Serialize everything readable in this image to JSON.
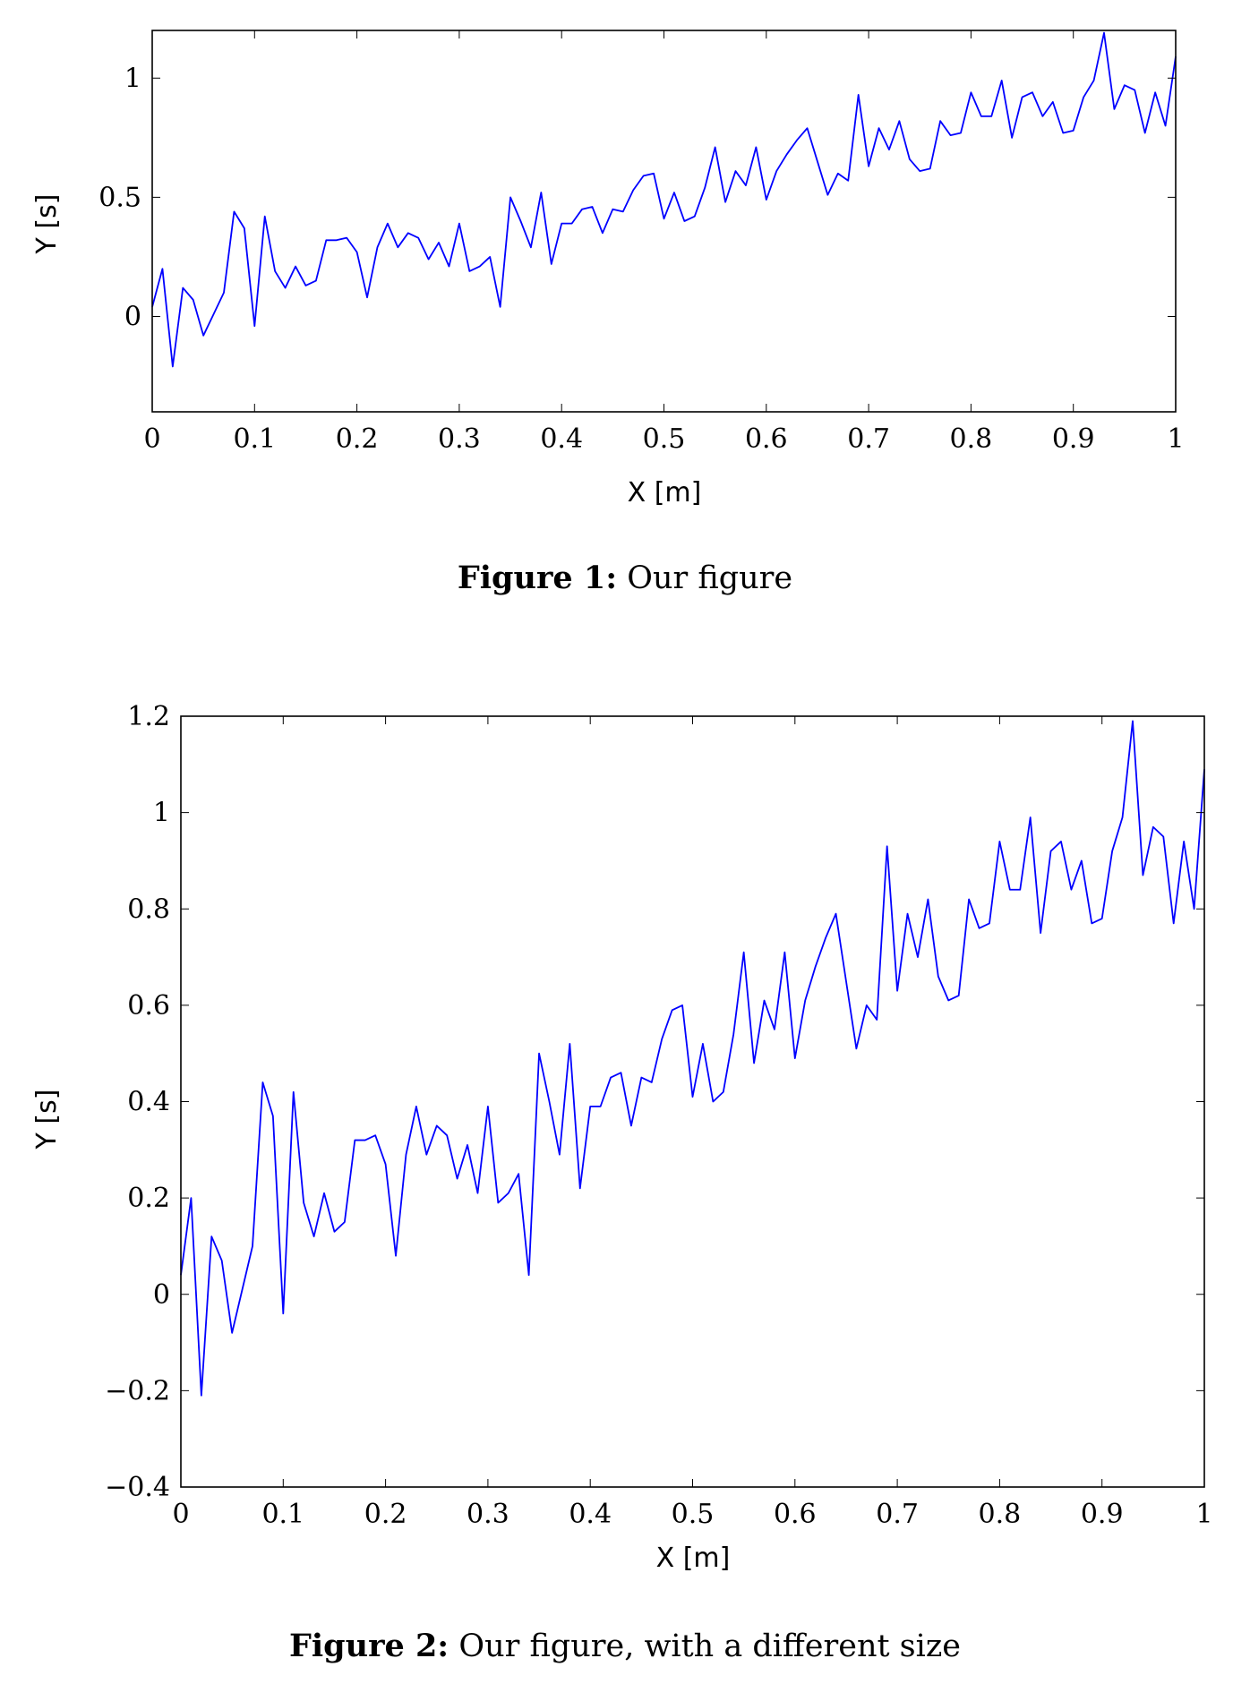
{
  "figures": [
    {
      "caption_label": "Figure 1:",
      "caption_text": "Our figure",
      "x_ticks": [
        "0",
        "0.1",
        "0.2",
        "0.3",
        "0.4",
        "0.5",
        "0.6",
        "0.7",
        "0.8",
        "0.9",
        "1"
      ],
      "y_ticks": [
        "0",
        "0.5",
        "1"
      ]
    },
    {
      "caption_label": "Figure 2:",
      "caption_text": "Our figure, with a different size",
      "x_ticks": [
        "0",
        "0.1",
        "0.2",
        "0.3",
        "0.4",
        "0.5",
        "0.6",
        "0.7",
        "0.8",
        "0.9",
        "1"
      ],
      "y_ticks": [
        "−0.4",
        "−0.2",
        "0",
        "0.2",
        "0.4",
        "0.6",
        "0.8",
        "1",
        "1.2"
      ]
    }
  ],
  "chart_data": [
    {
      "type": "line",
      "xlabel": "X [m]",
      "ylabel": "Y [s]",
      "xlim": [
        0,
        1
      ],
      "ylim": [
        -0.4,
        1.2
      ],
      "x_tick_values": [
        0,
        0.1,
        0.2,
        0.3,
        0.4,
        0.5,
        0.6,
        0.7,
        0.8,
        0.9,
        1
      ],
      "y_tick_values": [
        0,
        0.5,
        1
      ],
      "grid": false,
      "line_color": "#0000ff",
      "x": [
        0,
        0.01,
        0.02,
        0.03,
        0.04,
        0.05,
        0.06,
        0.07,
        0.08,
        0.09,
        0.1,
        0.11,
        0.12,
        0.13,
        0.14,
        0.15,
        0.16,
        0.17,
        0.18,
        0.19,
        0.2,
        0.21,
        0.22,
        0.23,
        0.24,
        0.25,
        0.26,
        0.27,
        0.28,
        0.29,
        0.3,
        0.31,
        0.32,
        0.33,
        0.34,
        0.35,
        0.36,
        0.37,
        0.38,
        0.39,
        0.4,
        0.41,
        0.42,
        0.43,
        0.44,
        0.45,
        0.46,
        0.47,
        0.48,
        0.49,
        0.5,
        0.51,
        0.52,
        0.53,
        0.54,
        0.55,
        0.56,
        0.57,
        0.58,
        0.59,
        0.6,
        0.61,
        0.62,
        0.63,
        0.64,
        0.65,
        0.66,
        0.67,
        0.68,
        0.69,
        0.7,
        0.71,
        0.72,
        0.73,
        0.74,
        0.75,
        0.76,
        0.77,
        0.78,
        0.79,
        0.8,
        0.81,
        0.82,
        0.83,
        0.84,
        0.85,
        0.86,
        0.87,
        0.88,
        0.89,
        0.9,
        0.91,
        0.92,
        0.93,
        0.94,
        0.95,
        0.96,
        0.97,
        0.98,
        0.99,
        1.0
      ],
      "y": [
        0.04,
        0.2,
        -0.21,
        0.12,
        0.07,
        -0.08,
        0.01,
        0.1,
        0.44,
        0.37,
        -0.04,
        0.42,
        0.19,
        0.12,
        0.21,
        0.13,
        0.15,
        0.32,
        0.32,
        0.33,
        0.27,
        0.08,
        0.29,
        0.39,
        0.29,
        0.35,
        0.33,
        0.24,
        0.31,
        0.21,
        0.39,
        0.19,
        0.21,
        0.25,
        0.04,
        0.5,
        0.4,
        0.29,
        0.52,
        0.22,
        0.39,
        0.39,
        0.45,
        0.46,
        0.35,
        0.45,
        0.44,
        0.53,
        0.59,
        0.6,
        0.41,
        0.52,
        0.4,
        0.42,
        0.54,
        0.71,
        0.48,
        0.61,
        0.55,
        0.71,
        0.49,
        0.61,
        0.68,
        0.74,
        0.79,
        0.65,
        0.51,
        0.6,
        0.57,
        0.93,
        0.63,
        0.79,
        0.7,
        0.82,
        0.66,
        0.61,
        0.62,
        0.82,
        0.76,
        0.77,
        0.94,
        0.84,
        0.84,
        0.99,
        0.75,
        0.92,
        0.94,
        0.84,
        0.9,
        0.77,
        0.78,
        0.92,
        0.99,
        1.19,
        0.87,
        0.97,
        0.95,
        0.77,
        0.94,
        0.8,
        1.09
      ]
    },
    {
      "type": "line",
      "xlabel": "X [m]",
      "ylabel": "Y [s]",
      "xlim": [
        0,
        1
      ],
      "ylim": [
        -0.4,
        1.2
      ],
      "x_tick_values": [
        0,
        0.1,
        0.2,
        0.3,
        0.4,
        0.5,
        0.6,
        0.7,
        0.8,
        0.9,
        1
      ],
      "y_tick_values": [
        -0.4,
        -0.2,
        0,
        0.2,
        0.4,
        0.6,
        0.8,
        1,
        1.2
      ],
      "grid": false,
      "line_color": "#0000ff",
      "x": [
        0,
        0.01,
        0.02,
        0.03,
        0.04,
        0.05,
        0.06,
        0.07,
        0.08,
        0.09,
        0.1,
        0.11,
        0.12,
        0.13,
        0.14,
        0.15,
        0.16,
        0.17,
        0.18,
        0.19,
        0.2,
        0.21,
        0.22,
        0.23,
        0.24,
        0.25,
        0.26,
        0.27,
        0.28,
        0.29,
        0.3,
        0.31,
        0.32,
        0.33,
        0.34,
        0.35,
        0.36,
        0.37,
        0.38,
        0.39,
        0.4,
        0.41,
        0.42,
        0.43,
        0.44,
        0.45,
        0.46,
        0.47,
        0.48,
        0.49,
        0.5,
        0.51,
        0.52,
        0.53,
        0.54,
        0.55,
        0.56,
        0.57,
        0.58,
        0.59,
        0.6,
        0.61,
        0.62,
        0.63,
        0.64,
        0.65,
        0.66,
        0.67,
        0.68,
        0.69,
        0.7,
        0.71,
        0.72,
        0.73,
        0.74,
        0.75,
        0.76,
        0.77,
        0.78,
        0.79,
        0.8,
        0.81,
        0.82,
        0.83,
        0.84,
        0.85,
        0.86,
        0.87,
        0.88,
        0.89,
        0.9,
        0.91,
        0.92,
        0.93,
        0.94,
        0.95,
        0.96,
        0.97,
        0.98,
        0.99,
        1.0
      ],
      "y": [
        0.04,
        0.2,
        -0.21,
        0.12,
        0.07,
        -0.08,
        0.01,
        0.1,
        0.44,
        0.37,
        -0.04,
        0.42,
        0.19,
        0.12,
        0.21,
        0.13,
        0.15,
        0.32,
        0.32,
        0.33,
        0.27,
        0.08,
        0.29,
        0.39,
        0.29,
        0.35,
        0.33,
        0.24,
        0.31,
        0.21,
        0.39,
        0.19,
        0.21,
        0.25,
        0.04,
        0.5,
        0.4,
        0.29,
        0.52,
        0.22,
        0.39,
        0.39,
        0.45,
        0.46,
        0.35,
        0.45,
        0.44,
        0.53,
        0.59,
        0.6,
        0.41,
        0.52,
        0.4,
        0.42,
        0.54,
        0.71,
        0.48,
        0.61,
        0.55,
        0.71,
        0.49,
        0.61,
        0.68,
        0.74,
        0.79,
        0.65,
        0.51,
        0.6,
        0.57,
        0.93,
        0.63,
        0.79,
        0.7,
        0.82,
        0.66,
        0.61,
        0.62,
        0.82,
        0.76,
        0.77,
        0.94,
        0.84,
        0.84,
        0.99,
        0.75,
        0.92,
        0.94,
        0.84,
        0.9,
        0.77,
        0.78,
        0.92,
        0.99,
        1.19,
        0.87,
        0.97,
        0.95,
        0.77,
        0.94,
        0.8,
        1.09
      ]
    }
  ]
}
